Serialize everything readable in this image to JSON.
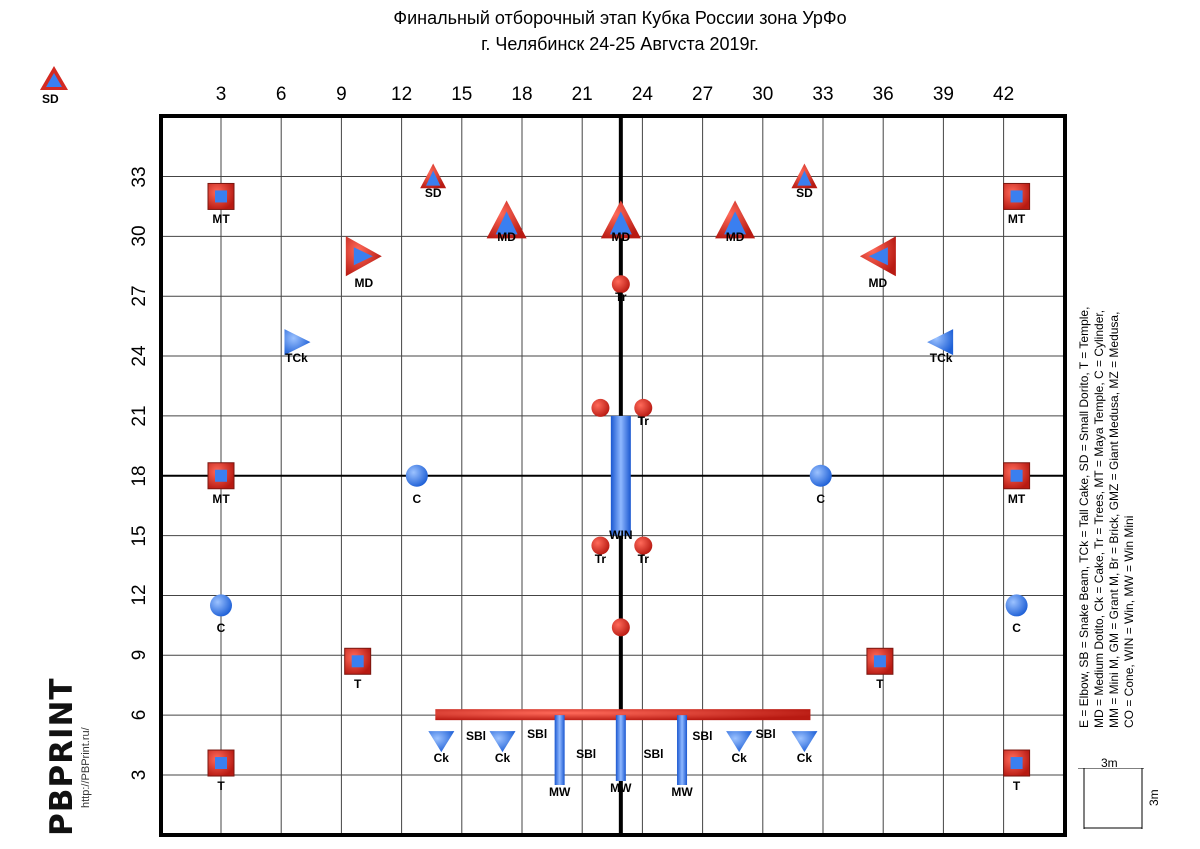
{
  "title": {
    "line1": "Финальный отборочный этап Кубка России зона УрФо",
    "line2": "г. Челябинск 24-25 Авгvста 2019г."
  },
  "x_ticks": [
    "3",
    "6",
    "9",
    "12",
    "15",
    "18",
    "21",
    "24",
    "27",
    "30",
    "33",
    "36",
    "39",
    "42"
  ],
  "y_ticks": [
    "33",
    "30",
    "27",
    "24",
    "21",
    "18",
    "15",
    "12",
    "9",
    "6",
    "3"
  ],
  "corner_label": "SD",
  "legend": {
    "line1": "E = Elbow, SB = Snake Beam, TCk = Tall Cake, SD = Small Dorito, T = Temple,",
    "line2": "MD = Medium Dotito, Ck = Cake, Tr = Trees, MT = Maya Temple, C = Cylinder,",
    "line3": "MM = Mini M, GM = Grant M, Br = Brick, GMZ = Giant Medusa, MZ = Medusa,",
    "line4": "CO = Cone, WIN = Win, MW = Win Mini"
  },
  "scale": {
    "w": "3m",
    "h": "3m"
  },
  "brand": {
    "name": "PBPRINT",
    "url": "http://PBPrint.ru/"
  },
  "colors": {
    "red": "#d42a22",
    "blue": "#3a7ff0",
    "grid": "#000000"
  },
  "bunkers": [
    {
      "type": "MT",
      "icon": "square-icon",
      "x": 3,
      "y": 32,
      "label": "MT"
    },
    {
      "type": "MT",
      "icon": "square-icon",
      "x": 42,
      "y": 32,
      "label": "MT"
    },
    {
      "type": "SD",
      "icon": "triangle-icon",
      "x": 13.4,
      "y": 33,
      "label": "SD"
    },
    {
      "type": "SD",
      "icon": "triangle-icon",
      "x": 31.6,
      "y": 33,
      "label": "SD"
    },
    {
      "type": "MD",
      "icon": "triangle-icon",
      "x": 17,
      "y": 30.8,
      "label": "MD"
    },
    {
      "type": "MD",
      "icon": "triangle-icon",
      "x": 22.6,
      "y": 30.8,
      "label": "MD"
    },
    {
      "type": "MD",
      "icon": "triangle-icon",
      "x": 28.2,
      "y": 30.8,
      "label": "MD"
    },
    {
      "type": "MD",
      "icon": "triangle-right-icon",
      "x": 10,
      "y": 29,
      "label": "MD"
    },
    {
      "type": "MD",
      "icon": "triangle-left-icon",
      "x": 35.2,
      "y": 29,
      "label": "MD"
    },
    {
      "type": "Tr",
      "icon": "tree-icon",
      "x": 22.6,
      "y": 27.6,
      "label": "Tr"
    },
    {
      "type": "TCk",
      "icon": "triangle-right-icon",
      "x": 6.7,
      "y": 24.7,
      "label": "TCk"
    },
    {
      "type": "TCk",
      "icon": "triangle-left-icon",
      "x": 38.3,
      "y": 24.7,
      "label": "TCk"
    },
    {
      "type": "Tr",
      "icon": "tree-icon",
      "x": 21.6,
      "y": 21.4,
      "label": ""
    },
    {
      "type": "Tr",
      "icon": "tree-icon",
      "x": 23.7,
      "y": 21.4,
      "label": "Tr"
    },
    {
      "type": "MT",
      "icon": "square-icon",
      "x": 3,
      "y": 18,
      "label": "MT"
    },
    {
      "type": "MT",
      "icon": "square-icon",
      "x": 42,
      "y": 18,
      "label": "MT"
    },
    {
      "type": "C",
      "icon": "cylinder-icon",
      "x": 12.6,
      "y": 18,
      "label": "C"
    },
    {
      "type": "C",
      "icon": "cylinder-icon",
      "x": 32.4,
      "y": 18,
      "label": "C"
    },
    {
      "type": "Tr",
      "icon": "tree-icon",
      "x": 21.6,
      "y": 14.5,
      "label": "Tr"
    },
    {
      "type": "Tr",
      "icon": "tree-icon",
      "x": 23.7,
      "y": 14.5,
      "label": "Tr"
    },
    {
      "type": "C",
      "icon": "cylinder-icon",
      "x": 3,
      "y": 11.5,
      "label": "C"
    },
    {
      "type": "C",
      "icon": "cylinder-icon",
      "x": 42,
      "y": 11.5,
      "label": "C"
    },
    {
      "type": "Tr",
      "icon": "tree-icon",
      "x": 22.6,
      "y": 10.4,
      "label": ""
    },
    {
      "type": "T",
      "icon": "square-icon",
      "x": 9.7,
      "y": 8.7,
      "label": "T"
    },
    {
      "type": "T",
      "icon": "square-icon",
      "x": 35.3,
      "y": 8.7,
      "label": "T"
    },
    {
      "type": "T",
      "icon": "square-icon",
      "x": 3,
      "y": 3.6,
      "label": "T"
    },
    {
      "type": "T",
      "icon": "square-icon",
      "x": 42,
      "y": 3.6,
      "label": "T"
    },
    {
      "type": "Ck",
      "icon": "cake-icon",
      "x": 13.8,
      "y": 4.8,
      "label": "Ck"
    },
    {
      "type": "Ck",
      "icon": "cake-icon",
      "x": 16.8,
      "y": 4.8,
      "label": "Ck"
    },
    {
      "type": "Ck",
      "icon": "cake-icon",
      "x": 28.4,
      "y": 4.8,
      "label": "Ck"
    },
    {
      "type": "Ck",
      "icon": "cake-icon",
      "x": 31.6,
      "y": 4.8,
      "label": "Ck"
    }
  ],
  "beam_labels": [
    {
      "x": 15.5,
      "y": 4.9,
      "text": "SBl"
    },
    {
      "x": 18.5,
      "y": 5.0,
      "text": "SBl"
    },
    {
      "x": 20.9,
      "y": 4.0,
      "text": "SBl"
    },
    {
      "x": 24.2,
      "y": 4.0,
      "text": "SBl"
    },
    {
      "x": 26.6,
      "y": 4.9,
      "text": "SBl"
    },
    {
      "x": 29.7,
      "y": 5.0,
      "text": "SBl"
    },
    {
      "x": 22.6,
      "y": 15.0,
      "text": "WIN"
    }
  ],
  "minis": [
    {
      "x": 19.6,
      "y": 3.0,
      "label": "MW"
    },
    {
      "x": 22.6,
      "y": 3.2,
      "label": "MW"
    },
    {
      "x": 25.6,
      "y": 3.0,
      "label": "MW"
    }
  ]
}
